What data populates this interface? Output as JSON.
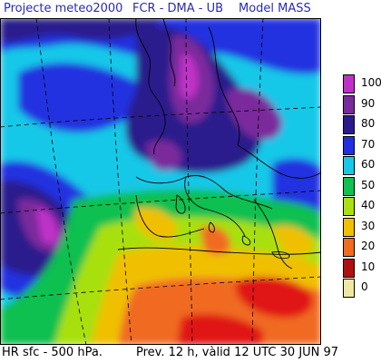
{
  "header": {
    "project": "Projecte meteo2000",
    "organization": "FCR - DMA - UB",
    "model": "Model  MASS"
  },
  "footer": {
    "field": "HR sfc - 500 hPa.",
    "validity": "Prev.  12 h,  vàlid  12 UTC 30 JUN 97"
  },
  "legend": {
    "levels": [
      {
        "value": "100",
        "color": "#c030c8"
      },
      {
        "value": "90",
        "color": "#7a2a9c"
      },
      {
        "value": "80",
        "color": "#2a1a8c"
      },
      {
        "value": "70",
        "color": "#2030e0"
      },
      {
        "value": "60",
        "color": "#18c8e8"
      },
      {
        "value": "50",
        "color": "#10c050"
      },
      {
        "value": "40",
        "color": "#a8e010"
      },
      {
        "value": "30",
        "color": "#f0c000"
      },
      {
        "value": "20",
        "color": "#f06a20"
      },
      {
        "value": "10",
        "color": "#b01010"
      },
      {
        "value": "0",
        "color": "#f0e8a0"
      }
    ]
  },
  "colors": {
    "header_text": "#2a2ab8",
    "sea_background": "#18c8e8",
    "map_frame": "#000000"
  }
}
